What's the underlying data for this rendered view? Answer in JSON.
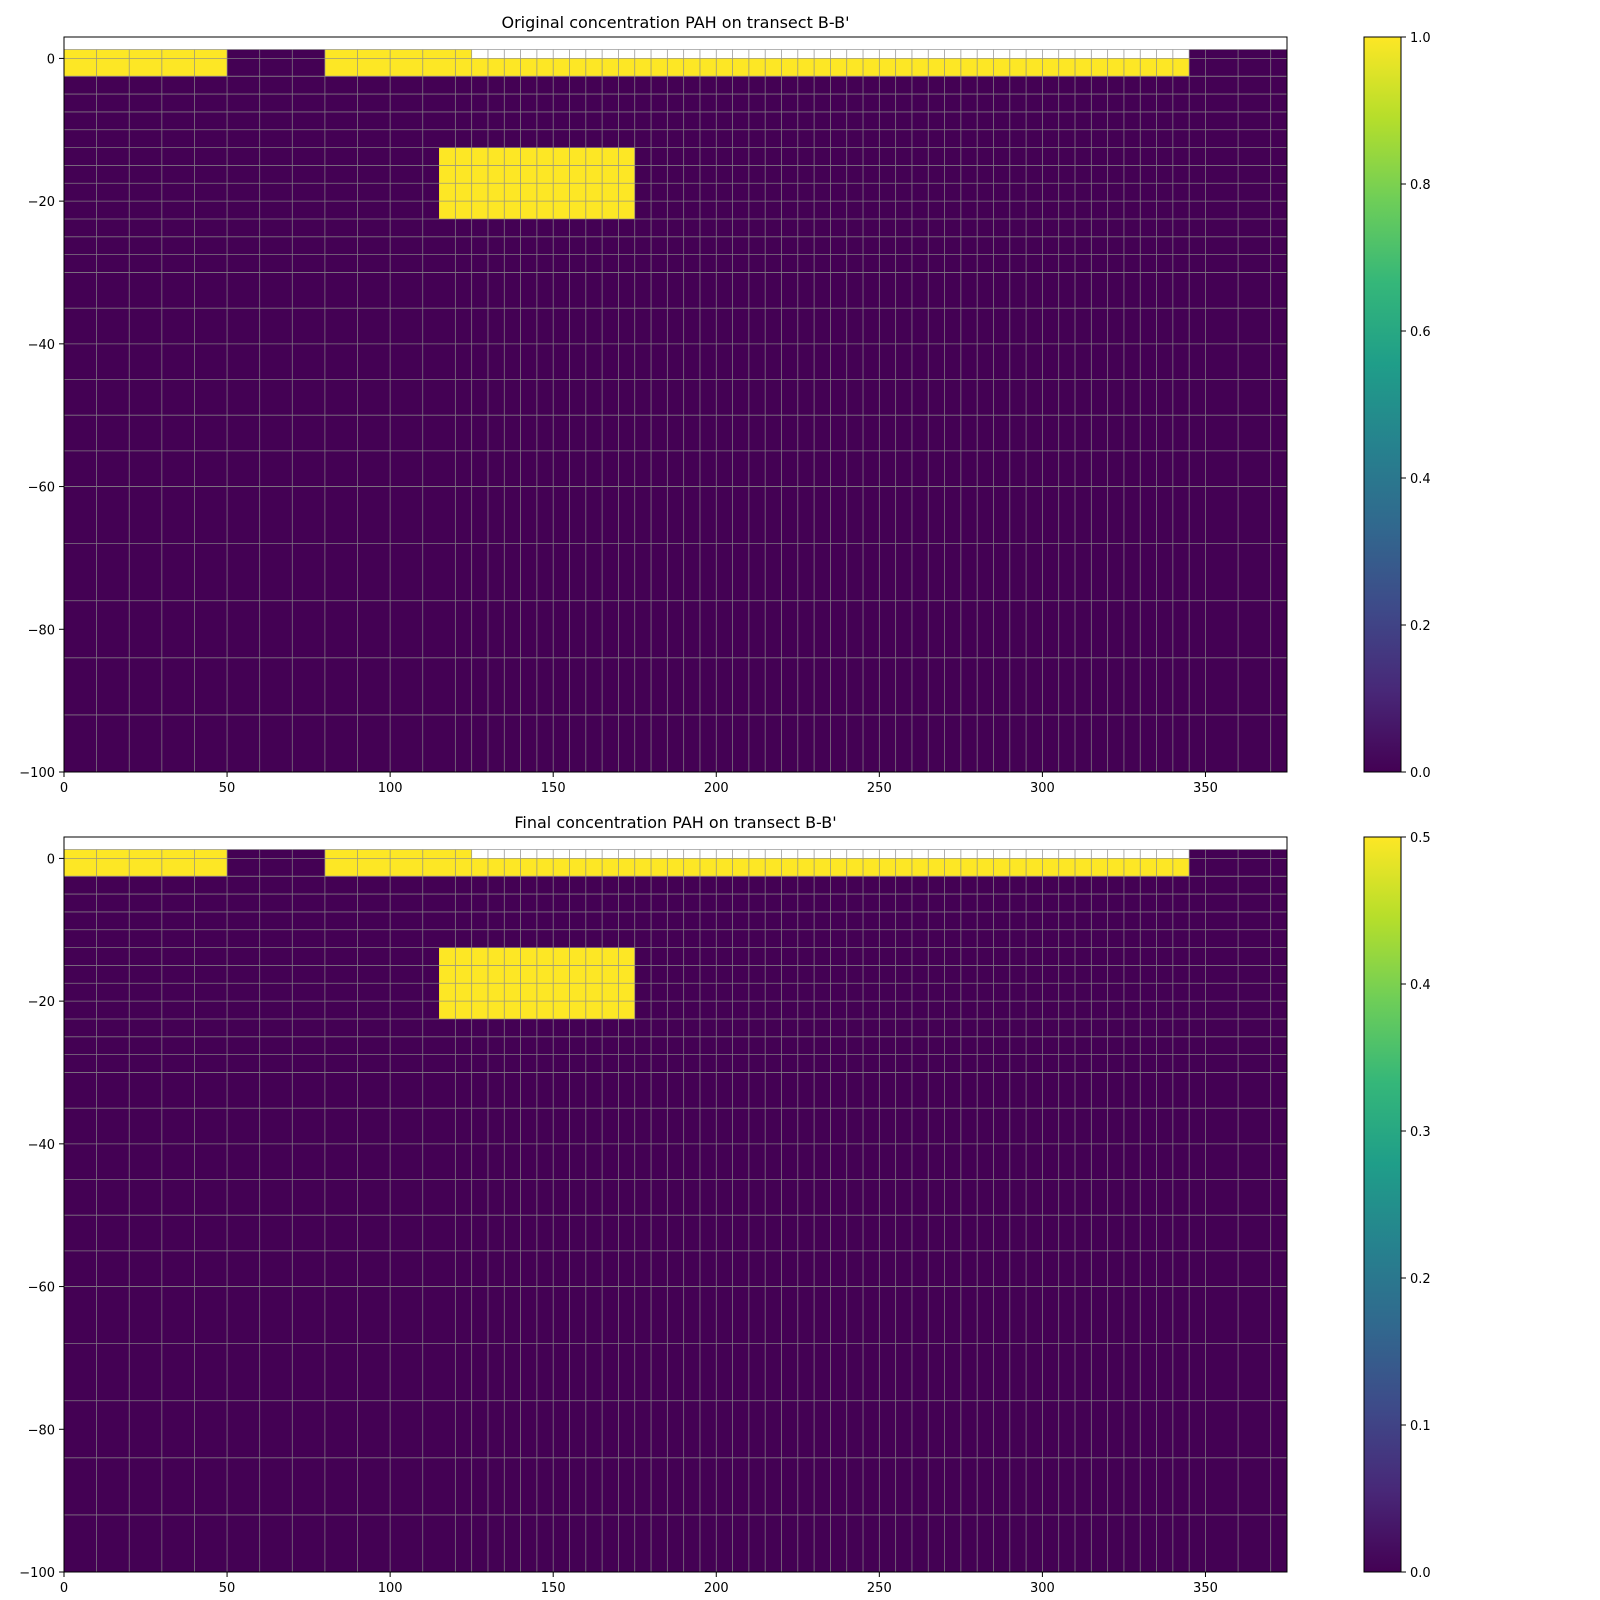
{
  "chart_data": [
    {
      "type": "heatmap",
      "title": "Original concentration PAH on transect B-B'",
      "xlim": [
        0,
        375
      ],
      "ylim": [
        -100,
        3
      ],
      "xticks": [
        0,
        50,
        100,
        150,
        200,
        250,
        300,
        350
      ],
      "yticks": [
        0,
        -20,
        -40,
        -60,
        -80,
        -100
      ],
      "colormap": "viridis",
      "colorbar": {
        "min": 0.0,
        "max": 1.0,
        "ticks": [
          "0.0",
          "0.2",
          "0.4",
          "0.6",
          "0.8",
          "1.0"
        ]
      },
      "grid": true,
      "background_value": 0.0,
      "regions": [
        {
          "x": [
            0,
            50
          ],
          "y": [
            -2.5,
            1.25
          ],
          "value": 1.0
        },
        {
          "x": [
            50,
            80
          ],
          "y": [
            -2.5,
            1.25
          ],
          "value": 0.0
        },
        {
          "x": [
            80,
            125
          ],
          "y": [
            -2.5,
            1.25
          ],
          "value": 1.0
        },
        {
          "x": [
            125,
            345
          ],
          "y": [
            -2.5,
            0
          ],
          "value": 1.0
        },
        {
          "x": [
            345,
            375
          ],
          "y": [
            -2.5,
            1.25
          ],
          "value": 0.0
        },
        {
          "x": [
            115,
            175
          ],
          "y": [
            -22.5,
            -12.5
          ],
          "value": 1.0
        }
      ]
    },
    {
      "type": "heatmap",
      "title": "Final concentration PAH on transect B-B'",
      "xlim": [
        0,
        375
      ],
      "ylim": [
        -100,
        3
      ],
      "xticks": [
        0,
        50,
        100,
        150,
        200,
        250,
        300,
        350
      ],
      "yticks": [
        0,
        -20,
        -40,
        -60,
        -80,
        -100
      ],
      "colormap": "viridis",
      "colorbar": {
        "min": 0.0,
        "max": 0.5,
        "ticks": [
          "0.0",
          "0.1",
          "0.2",
          "0.3",
          "0.4",
          "0.5"
        ]
      },
      "grid": true,
      "background_value": 0.0,
      "regions": [
        {
          "x": [
            0,
            50
          ],
          "y": [
            -2.5,
            1.25
          ],
          "value": 0.5
        },
        {
          "x": [
            50,
            80
          ],
          "y": [
            -2.5,
            1.25
          ],
          "value": 0.0
        },
        {
          "x": [
            80,
            125
          ],
          "y": [
            -2.5,
            1.25
          ],
          "value": 0.5
        },
        {
          "x": [
            125,
            345
          ],
          "y": [
            -2.5,
            0
          ],
          "value": 0.5
        },
        {
          "x": [
            345,
            375
          ],
          "y": [
            -2.5,
            1.25
          ],
          "value": 0.0
        },
        {
          "x": [
            115,
            175
          ],
          "y": [
            -22.5,
            -12.5
          ],
          "value": 0.5
        }
      ]
    }
  ]
}
